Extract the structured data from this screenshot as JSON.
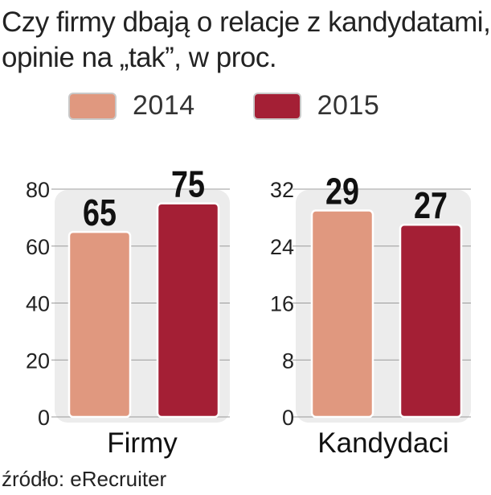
{
  "title": {
    "line1": "Czy firmy dbają o relacje z kandydatami,",
    "line2": "opinie na „tak”, w proc."
  },
  "legend": [
    {
      "label": "2014",
      "color": "#e0987f"
    },
    {
      "label": "2015",
      "color": "#a41f35"
    }
  ],
  "source": "źródło: eRecruiter",
  "chart_data": [
    {
      "type": "bar",
      "categories": [
        "Firmy"
      ],
      "series": [
        {
          "name": "2014",
          "values": [
            65
          ]
        },
        {
          "name": "2015",
          "values": [
            75
          ]
        }
      ],
      "xlabel": "Firmy",
      "ylim": [
        0,
        80
      ],
      "yticks": [
        0,
        20,
        40,
        60,
        80
      ],
      "data_labels": [
        "65",
        "75"
      ]
    },
    {
      "type": "bar",
      "categories": [
        "Kandydaci"
      ],
      "series": [
        {
          "name": "2014",
          "values": [
            29
          ]
        },
        {
          "name": "2015",
          "values": [
            27
          ]
        }
      ],
      "xlabel": "Kandydaci",
      "ylim": [
        0,
        32
      ],
      "yticks": [
        0,
        8,
        16,
        24,
        32
      ],
      "data_labels": [
        "29",
        "27"
      ]
    }
  ]
}
